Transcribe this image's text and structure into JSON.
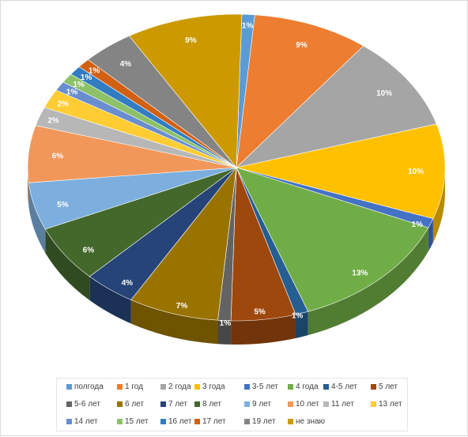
{
  "chart_data": {
    "type": "pie",
    "title": "",
    "label_format": "percent",
    "legend_position": "bottom",
    "style": "3d",
    "slices": [
      {
        "name": "полгода",
        "value": 1,
        "label": "1%",
        "color": "#5b9bd5"
      },
      {
        "name": "1 год",
        "value": 9,
        "label": "9%",
        "color": "#ed7d31"
      },
      {
        "name": "2 года",
        "value": 10,
        "label": "10%",
        "color": "#a5a5a5"
      },
      {
        "name": "3 года",
        "value": 10,
        "label": "10%",
        "color": "#ffc000"
      },
      {
        "name": "3-5 лет",
        "value": 1,
        "label": "1%",
        "color": "#4472c4"
      },
      {
        "name": "4 года",
        "value": 13,
        "label": "13%",
        "color": "#70ad47"
      },
      {
        "name": "4-5 лет",
        "value": 1,
        "label": "1%",
        "color": "#255e91"
      },
      {
        "name": "5 лет",
        "value": 5,
        "label": "5%",
        "color": "#9e480e"
      },
      {
        "name": "5-6 лет",
        "value": 1,
        "label": "1%",
        "color": "#636363"
      },
      {
        "name": "6 лет",
        "value": 7,
        "label": "7%",
        "color": "#997300"
      },
      {
        "name": "7 лет",
        "value": 4,
        "label": "4%",
        "color": "#264478"
      },
      {
        "name": "8 лет",
        "value": 6,
        "label": "6%",
        "color": "#43682b"
      },
      {
        "name": "9 лет",
        "value": 5,
        "label": "5%",
        "color": "#7cafdd"
      },
      {
        "name": "10 лет",
        "value": 6,
        "label": "6%",
        "color": "#f1975a"
      },
      {
        "name": "11 лет",
        "value": 2,
        "label": "2%",
        "color": "#b7b7b7"
      },
      {
        "name": "13 лет",
        "value": 2,
        "label": "2%",
        "color": "#ffcd33"
      },
      {
        "name": "14 лет",
        "value": 1,
        "label": "1%",
        "color": "#698ed0"
      },
      {
        "name": "15 лет",
        "value": 1,
        "label": "1%",
        "color": "#8cc168"
      },
      {
        "name": "16 лет",
        "value": 1,
        "label": "1%",
        "color": "#327dc2"
      },
      {
        "name": "17 лет",
        "value": 1,
        "label": "1%",
        "color": "#d26012"
      },
      {
        "name": "19 лет",
        "value": 4,
        "label": "4%",
        "color": "#848484"
      },
      {
        "name": "не знаю",
        "value": 9,
        "label": "9%",
        "color": "#cc9a00"
      }
    ]
  }
}
